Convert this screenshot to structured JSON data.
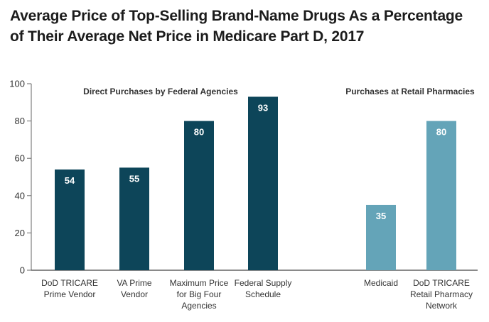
{
  "chart_data": {
    "type": "bar",
    "title": "Average Price of Top-Selling Brand-Name Drugs As a Percentage of Their Average Net Price in Medicare Part D, 2017",
    "xlabel": "",
    "ylabel": "",
    "ylim": [
      0,
      100
    ],
    "yticks": [
      0,
      20,
      40,
      60,
      80,
      100
    ],
    "groups": [
      {
        "label": "Direct Purchases by Federal Agencies",
        "color": "#0d4559",
        "bars": [
          {
            "label_lines": [
              "DoD TRICARE",
              "Prime Vendor"
            ],
            "value": 54
          },
          {
            "label_lines": [
              "VA Prime",
              "Vendor"
            ],
            "value": 55
          },
          {
            "label_lines": [
              "Maximum Price",
              "for Big Four",
              "Agencies"
            ],
            "value": 80
          },
          {
            "label_lines": [
              "Federal Supply",
              "Schedule"
            ],
            "value": 93
          }
        ]
      },
      {
        "label": "Purchases at Retail Pharmacies",
        "color": "#64a4b8",
        "bars": [
          {
            "label_lines": [
              "Medicaid"
            ],
            "value": 35
          },
          {
            "label_lines": [
              "DoD TRICARE",
              "Retail Pharmacy",
              "Network"
            ],
            "value": 80
          }
        ]
      }
    ]
  }
}
